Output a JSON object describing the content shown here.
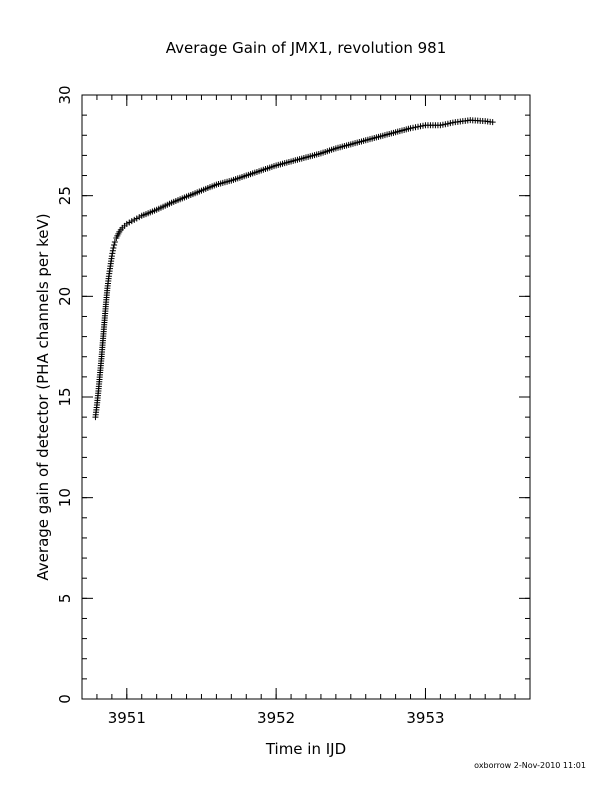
{
  "footer": "oxborrow  2-Nov-2010 11:01",
  "chart_data": {
    "type": "scatter",
    "title": "Average Gain of JMX1, revolution 981",
    "xlabel": "Time in IJD",
    "ylabel": "Average gain of detector (PHA channels per keV)",
    "xlim": [
      3950.7,
      3953.7
    ],
    "ylim": [
      0,
      30
    ],
    "xticks": [
      3951,
      3952,
      3953
    ],
    "yticks": [
      0,
      5,
      10,
      15,
      20,
      25,
      30
    ],
    "x_minor_step": 0.1,
    "y_minor_step": 1,
    "grid": false,
    "marker": "+",
    "color": "#000000",
    "series": [
      {
        "points": [
          [
            3950.79,
            14.0
          ],
          [
            3950.8,
            14.6
          ],
          [
            3950.81,
            15.3
          ],
          [
            3950.82,
            16.1
          ],
          [
            3950.83,
            16.9
          ],
          [
            3950.84,
            17.8
          ],
          [
            3950.85,
            18.7
          ],
          [
            3950.86,
            19.6
          ],
          [
            3950.87,
            20.4
          ],
          [
            3950.88,
            21.0
          ],
          [
            3950.89,
            21.5
          ],
          [
            3950.9,
            22.0
          ],
          [
            3950.91,
            22.4
          ],
          [
            3950.92,
            22.7
          ],
          [
            3950.93,
            22.9
          ],
          [
            3950.95,
            23.2
          ],
          [
            3950.97,
            23.4
          ],
          [
            3951.0,
            23.6
          ],
          [
            3951.05,
            23.8
          ],
          [
            3951.1,
            24.0
          ],
          [
            3951.2,
            24.3
          ],
          [
            3951.3,
            24.65
          ],
          [
            3951.4,
            24.95
          ],
          [
            3951.5,
            25.25
          ],
          [
            3951.6,
            25.55
          ],
          [
            3951.7,
            25.75
          ],
          [
            3951.8,
            26.0
          ],
          [
            3951.9,
            26.25
          ],
          [
            3952.0,
            26.5
          ],
          [
            3952.1,
            26.7
          ],
          [
            3952.2,
            26.9
          ],
          [
            3952.3,
            27.1
          ],
          [
            3952.4,
            27.35
          ],
          [
            3952.5,
            27.55
          ],
          [
            3952.6,
            27.75
          ],
          [
            3952.7,
            27.95
          ],
          [
            3952.8,
            28.15
          ],
          [
            3952.9,
            28.35
          ],
          [
            3953.0,
            28.5
          ],
          [
            3953.1,
            28.5
          ],
          [
            3953.2,
            28.65
          ],
          [
            3953.3,
            28.75
          ],
          [
            3953.4,
            28.7
          ],
          [
            3953.45,
            28.65
          ]
        ]
      }
    ]
  }
}
